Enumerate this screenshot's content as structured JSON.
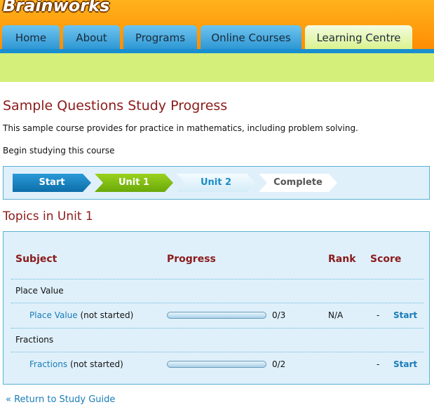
{
  "header": {
    "logo": "Brainworks",
    "tabs": [
      "Home",
      "About",
      "Programs",
      "Online Courses",
      "Learning Centre"
    ]
  },
  "page": {
    "title": "Sample Questions Study Progress",
    "description": "This sample course provides for practice in mathematics, including problem solving.",
    "begin": "Begin studying this course"
  },
  "steps": [
    "Start",
    "Unit 1",
    "Unit 2",
    "Complete"
  ],
  "topics": {
    "title": "Topics in Unit 1",
    "columns": [
      "Subject",
      "Progress",
      "Rank",
      "Score"
    ],
    "groups": [
      {
        "name": "Place Value",
        "rows": [
          {
            "subject": "Place Value",
            "status": "(not started)",
            "progress": "0/3",
            "rank": "N/A",
            "score": "-",
            "action": "Start"
          }
        ]
      },
      {
        "name": "Fractions",
        "rows": [
          {
            "subject": "Fractions",
            "status": "(not started)",
            "progress": "0/2",
            "score": "-",
            "action": "Start"
          }
        ]
      }
    ]
  },
  "footer": {
    "link": "« Return to Study Guide"
  }
}
